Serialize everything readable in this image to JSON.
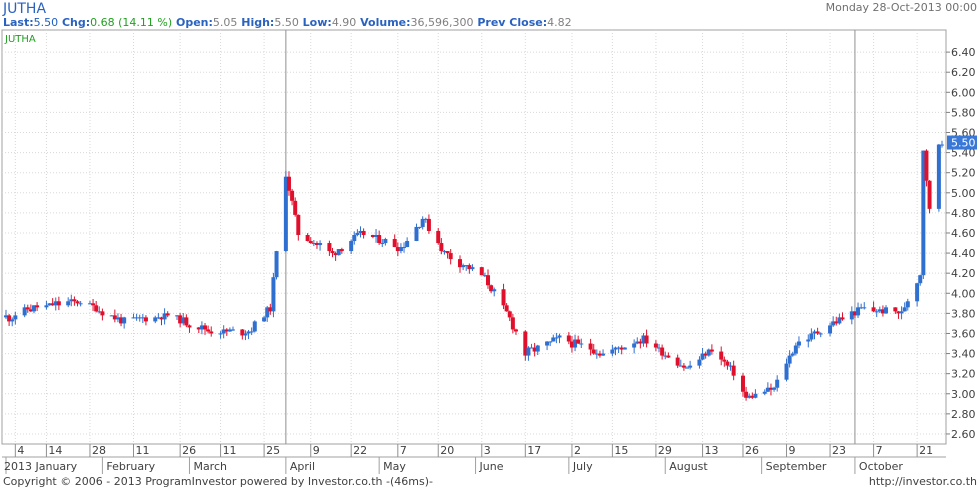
{
  "header": {
    "symbol": "JUTHA",
    "datetime": "Monday 28-Oct-2013 00:00",
    "fields": [
      {
        "label": "Last:",
        "value": "5.50",
        "value_color": "#2060c0"
      },
      {
        "label": "Chg:",
        "value": "0.68 (14.11 %)",
        "value_color": "#20a020"
      },
      {
        "label": "Open:",
        "value": "5.05",
        "value_color": "#808080"
      },
      {
        "label": "High:",
        "value": "5.50",
        "value_color": "#808080"
      },
      {
        "label": "Low:",
        "value": "4.90",
        "value_color": "#808080"
      },
      {
        "label": "Volume:",
        "value": "36,596,300",
        "value_color": "#808080"
      },
      {
        "label": "Prev Close:",
        "value": "4.82",
        "value_color": "#808080"
      }
    ]
  },
  "footer": {
    "copyright": "Copyright © 2006 - 2013 ProgramInvestor powered by Investor.co.th  -(46ms)-",
    "url": "http://investor.co.th"
  },
  "colors": {
    "up": "#2f6fd0",
    "down": "#e0102c",
    "grid": "#d8d8d8",
    "label_fill": "#3a78d8"
  },
  "chart_data": {
    "type": "candlestick",
    "series_label": "JUTHA",
    "y_ticks": [
      "2.60",
      "2.80",
      "3.00",
      "3.20",
      "3.40",
      "3.60",
      "3.80",
      "4.00",
      "4.20",
      "4.40",
      "4.60",
      "4.80",
      "5.00",
      "5.20",
      "5.40",
      "5.60",
      "5.80",
      "6.00",
      "6.20",
      "6.40"
    ],
    "ylim": [
      2.5,
      6.62
    ],
    "last_price_label": "5.50",
    "x_day_ticks": [
      "4",
      "14",
      "28",
      "11",
      "26",
      "11",
      "25",
      "9",
      "22",
      "7",
      "20",
      "3",
      "17",
      "2",
      "15",
      "29",
      "13",
      "26",
      "9",
      "23",
      "7",
      "21"
    ],
    "x_month_ticks": [
      "2013 January",
      "February",
      "March",
      "April",
      "May",
      "June",
      "July",
      "August",
      "September",
      "October"
    ],
    "anchors": [
      {
        "date": "2013-01-02",
        "close": 3.76
      },
      {
        "date": "2013-01-10",
        "close": 3.86
      },
      {
        "date": "2013-01-25",
        "close": 3.92
      },
      {
        "date": "2013-02-08",
        "close": 3.72
      },
      {
        "date": "2013-02-22",
        "close": 3.78
      },
      {
        "date": "2013-03-08",
        "close": 3.62
      },
      {
        "date": "2013-03-20",
        "close": 3.62
      },
      {
        "date": "2013-03-27",
        "close": 3.86
      },
      {
        "date": "2013-04-01",
        "close": 5.2
      },
      {
        "date": "2013-04-05",
        "close": 4.6
      },
      {
        "date": "2013-04-16",
        "close": 4.4
      },
      {
        "date": "2013-04-26",
        "close": 4.6
      },
      {
        "date": "2013-05-08",
        "close": 4.45
      },
      {
        "date": "2013-05-15",
        "close": 4.75
      },
      {
        "date": "2013-05-22",
        "close": 4.4
      },
      {
        "date": "2013-06-04",
        "close": 4.15
      },
      {
        "date": "2013-06-12",
        "close": 3.75
      },
      {
        "date": "2013-06-17",
        "close": 3.4
      },
      {
        "date": "2013-06-28",
        "close": 3.55
      },
      {
        "date": "2013-07-12",
        "close": 3.4
      },
      {
        "date": "2013-07-25",
        "close": 3.55
      },
      {
        "date": "2013-08-08",
        "close": 3.25
      },
      {
        "date": "2013-08-16",
        "close": 3.45
      },
      {
        "date": "2013-08-23",
        "close": 3.2
      },
      {
        "date": "2013-08-27",
        "close": 2.95
      },
      {
        "date": "2013-09-05",
        "close": 3.05
      },
      {
        "date": "2013-09-12",
        "close": 3.5
      },
      {
        "date": "2013-09-24",
        "close": 3.7
      },
      {
        "date": "2013-10-03",
        "close": 3.85
      },
      {
        "date": "2013-10-16",
        "close": 3.8
      },
      {
        "date": "2013-10-22",
        "close": 4.2
      },
      {
        "date": "2013-10-23",
        "close": 5.45
      },
      {
        "date": "2013-10-25",
        "close": 4.82
      },
      {
        "date": "2013-10-28",
        "close": 5.5
      }
    ]
  }
}
